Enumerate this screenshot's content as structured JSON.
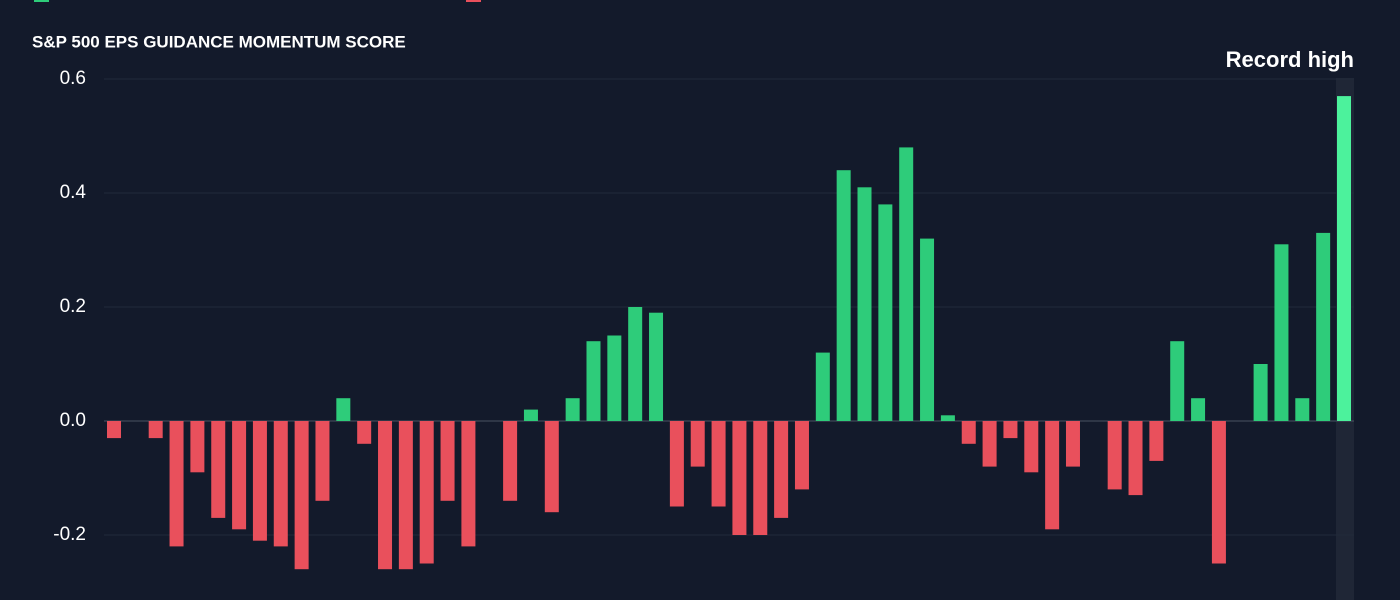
{
  "chart_data": {
    "type": "bar",
    "title": "S&P 500 EPS GUIDANCE MOMENTUM SCORE",
    "annotation": "Record high",
    "values": [
      -0.03,
      0,
      -0.03,
      -0.22,
      -0.09,
      -0.17,
      -0.19,
      -0.21,
      -0.22,
      -0.26,
      -0.14,
      0.04,
      -0.04,
      -0.26,
      -0.26,
      -0.25,
      -0.14,
      -0.22,
      0,
      -0.14,
      0.02,
      -0.16,
      0.04,
      0.14,
      0.15,
      0.2,
      0.19,
      -0.15,
      -0.08,
      -0.15,
      -0.2,
      -0.2,
      -0.17,
      -0.12,
      0.12,
      0.44,
      0.41,
      0.38,
      0.48,
      0.32,
      0.01,
      -0.04,
      -0.08,
      -0.03,
      -0.09,
      -0.19,
      -0.08,
      0,
      -0.12,
      -0.13,
      -0.07,
      0.14,
      0.04,
      -0.25,
      0,
      0.1,
      0.31,
      0.04,
      0.33,
      0.57
    ],
    "positive_color": "#2ecc7a",
    "negative_color": "#e9505c",
    "highlight_color": "#4cf29c",
    "ylim": [
      -0.31,
      0.6
    ],
    "yticks": [
      {
        "value": 0.6,
        "label": "0.6"
      },
      {
        "value": 0.4,
        "label": "0.4"
      },
      {
        "value": 0.2,
        "label": "0.2"
      },
      {
        "value": 0,
        "label": "0.0"
      },
      {
        "value": -0.2,
        "label": "-0.2"
      }
    ],
    "grid": true
  }
}
